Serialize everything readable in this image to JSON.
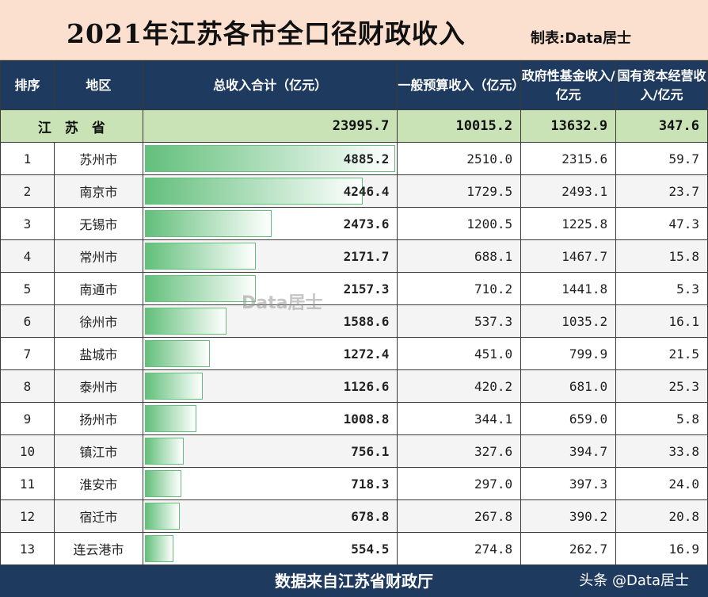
{
  "title": "2021年江苏各市全口径财政收入",
  "maker": "制表:Data居士",
  "headers": {
    "rank": "排序",
    "region": "地区",
    "total": "总收入合计（亿元）",
    "general": "一般预算收入（亿元）",
    "fund": "政府性基金收入/亿元",
    "state": "国有资本经营收入/亿元"
  },
  "province_row": {
    "name": "江　苏　省",
    "total": "23995.7",
    "general": "10015.2",
    "fund": "13632.9",
    "state": "347.6"
  },
  "rows": [
    {
      "rank": "1",
      "city": "苏州市",
      "total": "4885.2",
      "total_value": 4885.2,
      "general": "2510.0",
      "fund": "2315.6",
      "state": "59.7"
    },
    {
      "rank": "2",
      "city": "南京市",
      "total": "4246.4",
      "total_value": 4246.4,
      "general": "1729.5",
      "fund": "2493.1",
      "state": "23.7"
    },
    {
      "rank": "3",
      "city": "无锡市",
      "total": "2473.6",
      "total_value": 2473.6,
      "general": "1200.5",
      "fund": "1225.8",
      "state": "47.3"
    },
    {
      "rank": "4",
      "city": "常州市",
      "total": "2171.7",
      "total_value": 2171.7,
      "general": "688.1",
      "fund": "1467.7",
      "state": "15.8"
    },
    {
      "rank": "5",
      "city": "南通市",
      "total": "2157.3",
      "total_value": 2157.3,
      "general": "710.2",
      "fund": "1441.8",
      "state": "5.3"
    },
    {
      "rank": "6",
      "city": "徐州市",
      "total": "1588.6",
      "total_value": 1588.6,
      "general": "537.3",
      "fund": "1035.2",
      "state": "16.1"
    },
    {
      "rank": "7",
      "city": "盐城市",
      "total": "1272.4",
      "total_value": 1272.4,
      "general": "451.0",
      "fund": "799.9",
      "state": "21.5"
    },
    {
      "rank": "8",
      "city": "泰州市",
      "total": "1126.6",
      "total_value": 1126.6,
      "general": "420.2",
      "fund": "681.0",
      "state": "25.3"
    },
    {
      "rank": "9",
      "city": "扬州市",
      "total": "1008.8",
      "total_value": 1008.8,
      "general": "344.1",
      "fund": "659.0",
      "state": "5.8"
    },
    {
      "rank": "10",
      "city": "镇江市",
      "total": "756.1",
      "total_value": 756.1,
      "general": "327.6",
      "fund": "394.7",
      "state": "33.8"
    },
    {
      "rank": "11",
      "city": "淮安市",
      "total": "718.3",
      "total_value": 718.3,
      "general": "297.0",
      "fund": "397.3",
      "state": "24.0"
    },
    {
      "rank": "12",
      "city": "宿迁市",
      "total": "678.8",
      "total_value": 678.8,
      "general": "267.8",
      "fund": "390.2",
      "state": "20.8"
    },
    {
      "rank": "13",
      "city": "连云港市",
      "total": "554.5",
      "total_value": 554.5,
      "general": "274.8",
      "fund": "262.7",
      "state": "16.9"
    }
  ],
  "bar_max": 4885.2,
  "watermark": "Data居士",
  "footer": {
    "source": "数据来自江苏省财政厅",
    "credit": "头条 @Data居士"
  },
  "colors": {
    "header_bg": "#1f3a5f",
    "title_bg": "#fbe0d0",
    "province_bg": "#c9e3b7",
    "bar": "#63bf7b"
  }
}
